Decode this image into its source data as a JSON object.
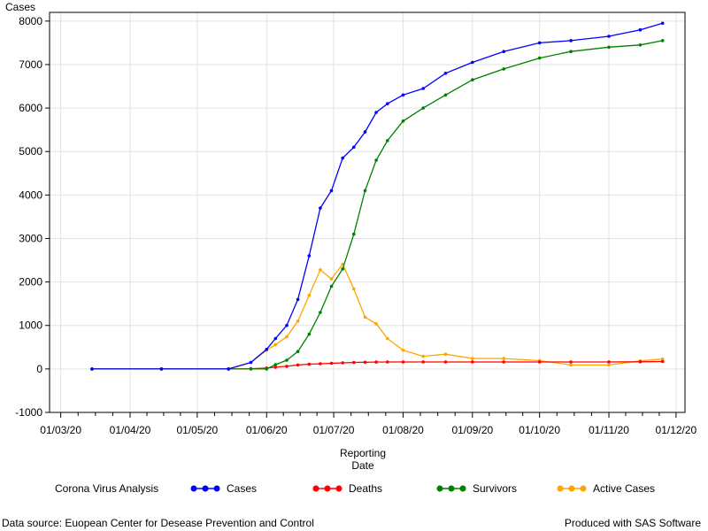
{
  "chart_data": {
    "type": "line",
    "title": "",
    "xlabel_line1": "Reporting",
    "xlabel_line2": "Date",
    "ylabel": "Cases",
    "ylim": [
      -1000,
      8200
    ],
    "yticks": [
      -1000,
      0,
      1000,
      2000,
      3000,
      4000,
      5000,
      6000,
      7000,
      8000
    ],
    "xticks": [
      "01/03/20",
      "01/04/20",
      "01/05/20",
      "01/06/20",
      "01/07/20",
      "01/08/20",
      "01/09/20",
      "01/10/20",
      "01/11/20",
      "01/12/20"
    ],
    "x_range": [
      "2020-02-25",
      "2020-12-05"
    ],
    "grid": true,
    "legend_placement": "bottom",
    "legend_title": "Corona Virus Analysis",
    "x": [
      "2020-03-15",
      "2020-04-15",
      "2020-05-15",
      "2020-05-25",
      "2020-06-01",
      "2020-06-05",
      "2020-06-10",
      "2020-06-15",
      "2020-06-20",
      "2020-06-25",
      "2020-06-30",
      "2020-07-05",
      "2020-07-10",
      "2020-07-15",
      "2020-07-20",
      "2020-07-25",
      "2020-08-01",
      "2020-08-10",
      "2020-08-20",
      "2020-09-01",
      "2020-09-15",
      "2020-10-01",
      "2020-10-15",
      "2020-11-01",
      "2020-11-15",
      "2020-11-25"
    ],
    "series": [
      {
        "name": "Cases",
        "color": "#0000ff",
        "values": [
          0,
          0,
          0,
          150,
          450,
          700,
          1000,
          1600,
          2600,
          3700,
          4100,
          4850,
          5100,
          5450,
          5900,
          6100,
          6300,
          6450,
          6800,
          7050,
          7300,
          7500,
          7550,
          7650,
          7800,
          7950
        ]
      },
      {
        "name": "Deaths",
        "color": "#ff0000",
        "values": [
          0,
          0,
          0,
          5,
          20,
          40,
          60,
          90,
          110,
          120,
          130,
          140,
          150,
          155,
          158,
          160,
          160,
          160,
          160,
          160,
          160,
          160,
          160,
          160,
          165,
          170
        ]
      },
      {
        "name": "Survivors",
        "color": "#008000",
        "values": [
          0,
          0,
          0,
          0,
          0,
          100,
          200,
          400,
          800,
          1300,
          1900,
          2300,
          3100,
          4100,
          4800,
          5250,
          5700,
          6000,
          6300,
          6650,
          6900,
          7150,
          7300,
          7400,
          7450,
          7550
        ]
      },
      {
        "name": "Active Cases",
        "color": "#ffa500",
        "values": [
          0,
          0,
          0,
          150,
          430,
          560,
          740,
          1100,
          1690,
          2280,
          2070,
          2410,
          1840,
          1190,
          1040,
          700,
          430,
          290,
          340,
          240,
          240,
          190,
          90,
          90,
          185,
          230
        ]
      }
    ]
  },
  "footer": {
    "source": "Data source: Euopean Center for Desease Prevention and Control",
    "produced": "Produced with SAS Software"
  }
}
